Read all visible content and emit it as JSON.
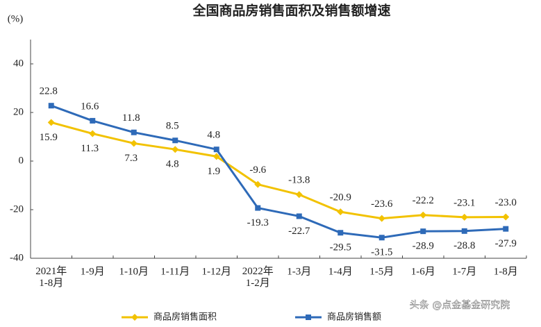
{
  "chart_data": {
    "type": "line",
    "title": "全国商品房销售面积及销售额增速",
    "y_label": "(%)",
    "watermark": "头条 @点金基金研究院",
    "categories": [
      "2021年\n1-8月",
      "1-9月",
      "1-10月",
      "1-11月",
      "1-12月",
      "2022年\n1-2月",
      "1-3月",
      "1-4月",
      "1-5月",
      "1-6月",
      "1-7月",
      "1-8月"
    ],
    "series": [
      {
        "name": "商品房销售面积",
        "color": "#f2c200",
        "marker": "diamond",
        "values": [
          15.9,
          11.3,
          7.3,
          4.8,
          1.9,
          -9.6,
          -13.8,
          -20.9,
          -23.6,
          -22.2,
          -23.1,
          -23.0
        ],
        "value_labels": [
          "15.9",
          "11.3",
          "7.3",
          "4.8",
          "1.9",
          "-9.6",
          "-13.8",
          "-20.9",
          "-23.6",
          "-22.2",
          "-23.1",
          "-23.0"
        ]
      },
      {
        "name": "商品房销售额",
        "color": "#2e6ab8",
        "marker": "square",
        "values": [
          22.8,
          16.6,
          11.8,
          8.5,
          4.8,
          -19.3,
          -22.7,
          -29.5,
          -31.5,
          -28.9,
          -28.8,
          -27.9
        ],
        "value_labels": [
          "22.8",
          "16.6",
          "11.8",
          "8.5",
          "4.8",
          "-19.3",
          "-22.7",
          "-29.5",
          "-31.5",
          "-28.9",
          "-28.8",
          "-27.9"
        ]
      }
    ],
    "ylim": [
      -40,
      50
    ],
    "yticks": [
      -40,
      -20,
      0,
      20,
      40
    ],
    "grid": false
  }
}
